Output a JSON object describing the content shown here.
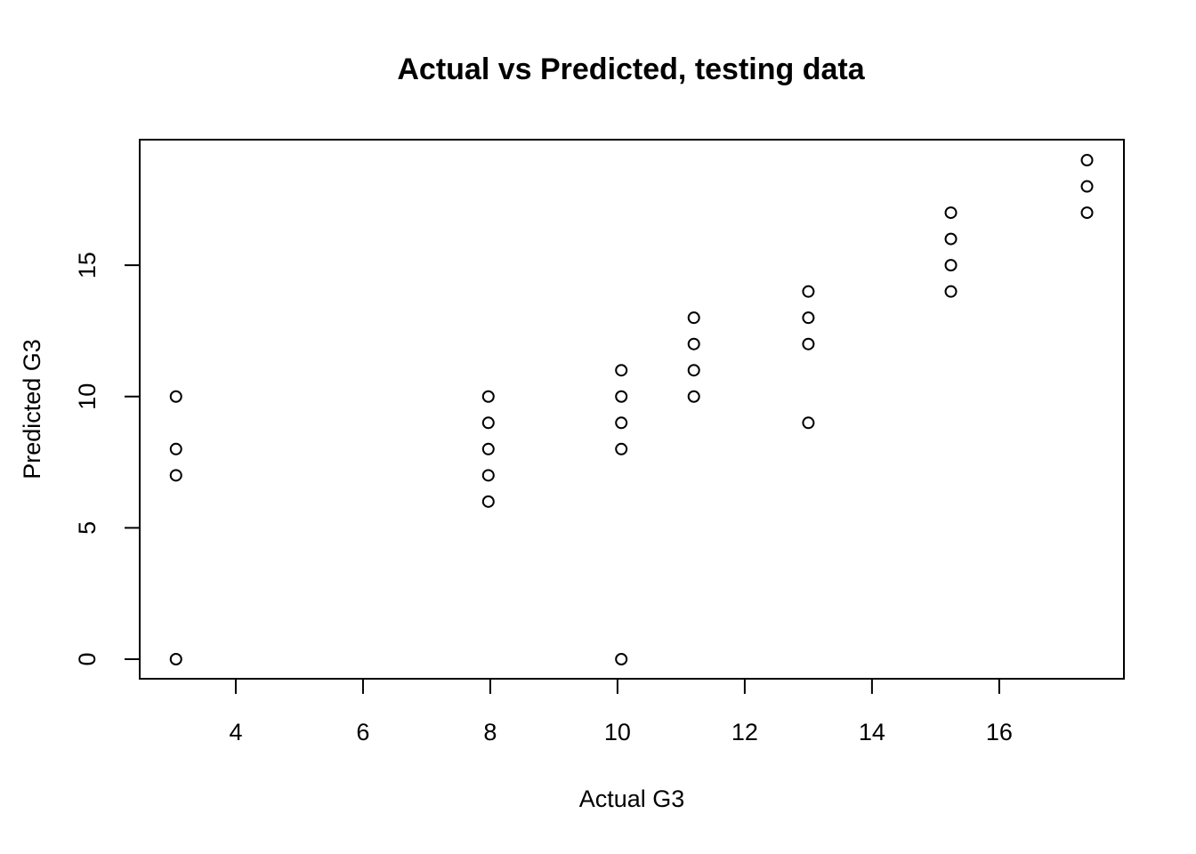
{
  "chart_data": {
    "type": "scatter",
    "title": "Actual vs Predicted, testing data",
    "x_label": "Actual G3",
    "y_label": "Predicted G3",
    "x": [
      3.06,
      3.06,
      3.06,
      3.06,
      7.97,
      7.97,
      7.97,
      7.97,
      7.97,
      10.06,
      10.06,
      10.06,
      10.06,
      10.06,
      11.2,
      11.2,
      11.2,
      11.2,
      13.0,
      13.0,
      13.0,
      13.0,
      15.24,
      15.24,
      15.24,
      15.24,
      17.38,
      17.38,
      17.38
    ],
    "values": [
      10,
      8,
      7,
      0,
      10,
      9,
      8,
      7,
      6,
      11,
      10,
      9,
      8,
      0,
      13,
      12,
      11,
      10,
      14,
      13,
      12,
      9,
      17,
      16,
      15,
      14,
      19,
      18,
      17
    ],
    "color": "#000000",
    "xlim": [
      2.49,
      17.96
    ],
    "xticks": [
      4,
      6,
      8,
      10,
      12,
      14,
      16
    ],
    "ylim": [
      -0.745,
      19.78
    ],
    "yticks": [
      0,
      5,
      10,
      15
    ]
  }
}
